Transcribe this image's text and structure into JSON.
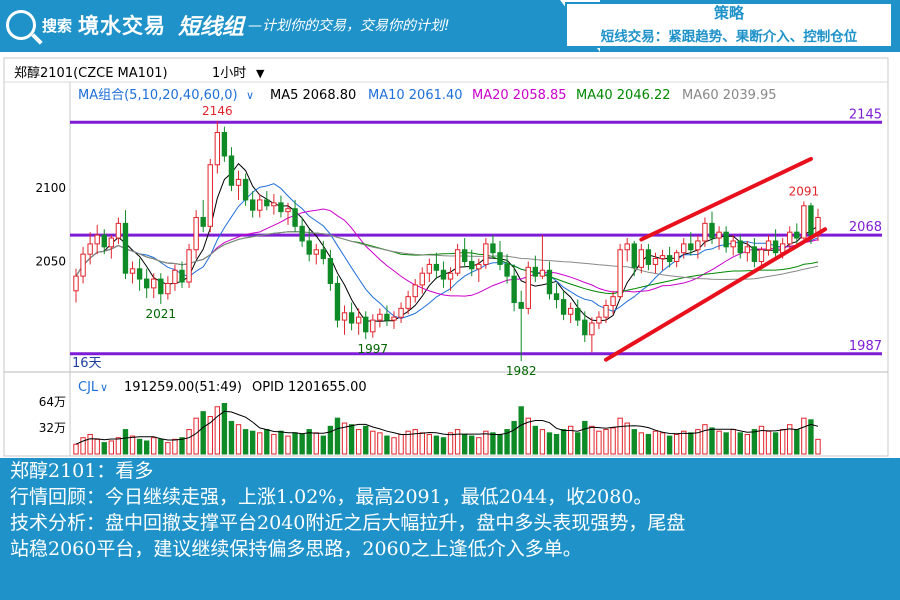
{
  "banner": {
    "logo_prefix": "搜索",
    "logo_name": "境水交易",
    "group": "短线组",
    "slogan": "—计划你的交易，交易你的计划!"
  },
  "strategy": {
    "title": "策略",
    "subtitle": "短线交易：紧跟趋势、果断介入、控制仓位"
  },
  "header": {
    "instrument": "郑醇2101(CZCE MA101)",
    "period": "1小时"
  },
  "ma_legend": {
    "group_label": "MA组合(5,10,20,40,60,0)",
    "items": [
      {
        "label": "MA5 2068.80",
        "color": "#000000"
      },
      {
        "label": "MA10 2061.40",
        "color": "#1e6fd9"
      },
      {
        "label": "MA20 2058.85",
        "color": "#cc00cc"
      },
      {
        "label": "MA40 2046.22",
        "color": "#008800"
      },
      {
        "label": "MA60 2039.95",
        "color": "#888888"
      }
    ]
  },
  "colors": {
    "up": "#e0242b",
    "down": "#0e8a26",
    "level": "#7f1dd6",
    "channel": "#e8101c"
  },
  "chart_data": [
    {
      "type": "candlestick",
      "title": "",
      "ylim": [
        1978,
        2152
      ],
      "y_ticks": [
        2050,
        2100
      ],
      "levels": [
        {
          "value": 2145,
          "label": "2145"
        },
        {
          "value": 2068,
          "label": "2068"
        },
        {
          "value": 1987,
          "label": "1987"
        }
      ],
      "annotations": [
        {
          "text": "2146",
          "value": 2146,
          "index": 20
        },
        {
          "text": "2021",
          "value": 2021,
          "index": 12
        },
        {
          "text": "1997",
          "value": 1997,
          "index": 42
        },
        {
          "text": "1982",
          "value": 1982,
          "index": 63
        },
        {
          "text": "2091",
          "value": 2091,
          "index": 103
        }
      ],
      "period_marker": "16天",
      "candles": [
        {
          "o": 2030,
          "h": 2045,
          "l": 2022,
          "c": 2040
        },
        {
          "o": 2040,
          "h": 2060,
          "l": 2035,
          "c": 2055
        },
        {
          "o": 2055,
          "h": 2070,
          "l": 2048,
          "c": 2062
        },
        {
          "o": 2062,
          "h": 2075,
          "l": 2055,
          "c": 2068
        },
        {
          "o": 2068,
          "h": 2072,
          "l": 2055,
          "c": 2060
        },
        {
          "o": 2060,
          "h": 2068,
          "l": 2052,
          "c": 2066
        },
        {
          "o": 2066,
          "h": 2080,
          "l": 2062,
          "c": 2076
        },
        {
          "o": 2076,
          "h": 2085,
          "l": 2038,
          "c": 2042
        },
        {
          "o": 2042,
          "h": 2050,
          "l": 2035,
          "c": 2045
        },
        {
          "o": 2045,
          "h": 2052,
          "l": 2030,
          "c": 2038
        },
        {
          "o": 2038,
          "h": 2045,
          "l": 2025,
          "c": 2032
        },
        {
          "o": 2032,
          "h": 2042,
          "l": 2025,
          "c": 2038
        },
        {
          "o": 2038,
          "h": 2042,
          "l": 2021,
          "c": 2028
        },
        {
          "o": 2028,
          "h": 2040,
          "l": 2024,
          "c": 2035
        },
        {
          "o": 2035,
          "h": 2048,
          "l": 2030,
          "c": 2044
        },
        {
          "o": 2044,
          "h": 2050,
          "l": 2032,
          "c": 2036
        },
        {
          "o": 2036,
          "h": 2062,
          "l": 2032,
          "c": 2058
        },
        {
          "o": 2058,
          "h": 2085,
          "l": 2052,
          "c": 2080
        },
        {
          "o": 2080,
          "h": 2092,
          "l": 2070,
          "c": 2074
        },
        {
          "o": 2074,
          "h": 2120,
          "l": 2070,
          "c": 2116
        },
        {
          "o": 2116,
          "h": 2146,
          "l": 2110,
          "c": 2138
        },
        {
          "o": 2138,
          "h": 2142,
          "l": 2118,
          "c": 2122
        },
        {
          "o": 2122,
          "h": 2128,
          "l": 2098,
          "c": 2102
        },
        {
          "o": 2102,
          "h": 2112,
          "l": 2092,
          "c": 2106
        },
        {
          "o": 2106,
          "h": 2110,
          "l": 2088,
          "c": 2092
        },
        {
          "o": 2092,
          "h": 2098,
          "l": 2080,
          "c": 2085
        },
        {
          "o": 2085,
          "h": 2096,
          "l": 2080,
          "c": 2092
        },
        {
          "o": 2092,
          "h": 2098,
          "l": 2085,
          "c": 2088
        },
        {
          "o": 2088,
          "h": 2096,
          "l": 2082,
          "c": 2090
        },
        {
          "o": 2090,
          "h": 2095,
          "l": 2080,
          "c": 2084
        },
        {
          "o": 2084,
          "h": 2090,
          "l": 2075,
          "c": 2086
        },
        {
          "o": 2086,
          "h": 2092,
          "l": 2070,
          "c": 2074
        },
        {
          "o": 2074,
          "h": 2080,
          "l": 2060,
          "c": 2064
        },
        {
          "o": 2064,
          "h": 2072,
          "l": 2050,
          "c": 2055
        },
        {
          "o": 2055,
          "h": 2062,
          "l": 2048,
          "c": 2058
        },
        {
          "o": 2058,
          "h": 2064,
          "l": 2048,
          "c": 2052
        },
        {
          "o": 2052,
          "h": 2058,
          "l": 2030,
          "c": 2035
        },
        {
          "o": 2035,
          "h": 2040,
          "l": 2005,
          "c": 2010
        },
        {
          "o": 2010,
          "h": 2020,
          "l": 2000,
          "c": 2015
        },
        {
          "o": 2015,
          "h": 2022,
          "l": 2003,
          "c": 2008
        },
        {
          "o": 2008,
          "h": 2018,
          "l": 2000,
          "c": 2012
        },
        {
          "o": 2012,
          "h": 2016,
          "l": 1997,
          "c": 2002
        },
        {
          "o": 2002,
          "h": 2014,
          "l": 1998,
          "c": 2010
        },
        {
          "o": 2010,
          "h": 2018,
          "l": 2005,
          "c": 2014
        },
        {
          "o": 2014,
          "h": 2020,
          "l": 2006,
          "c": 2010
        },
        {
          "o": 2010,
          "h": 2016,
          "l": 2004,
          "c": 2012
        },
        {
          "o": 2012,
          "h": 2022,
          "l": 2008,
          "c": 2018
        },
        {
          "o": 2018,
          "h": 2030,
          "l": 2014,
          "c": 2026
        },
        {
          "o": 2026,
          "h": 2038,
          "l": 2022,
          "c": 2034
        },
        {
          "o": 2034,
          "h": 2046,
          "l": 2028,
          "c": 2042
        },
        {
          "o": 2042,
          "h": 2052,
          "l": 2036,
          "c": 2048
        },
        {
          "o": 2048,
          "h": 2056,
          "l": 2038,
          "c": 2044
        },
        {
          "o": 2044,
          "h": 2050,
          "l": 2032,
          "c": 2038
        },
        {
          "o": 2038,
          "h": 2046,
          "l": 2030,
          "c": 2042
        },
        {
          "o": 2042,
          "h": 2062,
          "l": 2040,
          "c": 2058
        },
        {
          "o": 2058,
          "h": 2066,
          "l": 2046,
          "c": 2050
        },
        {
          "o": 2050,
          "h": 2058,
          "l": 2040,
          "c": 2045
        },
        {
          "o": 2045,
          "h": 2052,
          "l": 2036,
          "c": 2048
        },
        {
          "o": 2048,
          "h": 2066,
          "l": 2045,
          "c": 2062
        },
        {
          "o": 2062,
          "h": 2068,
          "l": 2052,
          "c": 2056
        },
        {
          "o": 2056,
          "h": 2064,
          "l": 2044,
          "c": 2048
        },
        {
          "o": 2048,
          "h": 2055,
          "l": 2035,
          "c": 2040
        },
        {
          "o": 2040,
          "h": 2048,
          "l": 2016,
          "c": 2022
        },
        {
          "o": 2022,
          "h": 2030,
          "l": 1982,
          "c": 2018
        },
        {
          "o": 2018,
          "h": 2050,
          "l": 2014,
          "c": 2046
        },
        {
          "o": 2046,
          "h": 2054,
          "l": 2036,
          "c": 2040
        },
        {
          "o": 2040,
          "h": 2068,
          "l": 2038,
          "c": 2044
        },
        {
          "o": 2044,
          "h": 2050,
          "l": 2024,
          "c": 2028
        },
        {
          "o": 2028,
          "h": 2035,
          "l": 2018,
          "c": 2024
        },
        {
          "o": 2024,
          "h": 2030,
          "l": 2010,
          "c": 2014
        },
        {
          "o": 2014,
          "h": 2022,
          "l": 2008,
          "c": 2018
        },
        {
          "o": 2018,
          "h": 2024,
          "l": 2006,
          "c": 2010
        },
        {
          "o": 2010,
          "h": 2016,
          "l": 1995,
          "c": 2000
        },
        {
          "o": 2000,
          "h": 2012,
          "l": 1988,
          "c": 2008
        },
        {
          "o": 2008,
          "h": 2016,
          "l": 2004,
          "c": 2012
        },
        {
          "o": 2012,
          "h": 2024,
          "l": 2008,
          "c": 2020
        },
        {
          "o": 2020,
          "h": 2030,
          "l": 2014,
          "c": 2026
        },
        {
          "o": 2026,
          "h": 2062,
          "l": 2024,
          "c": 2058
        },
        {
          "o": 2058,
          "h": 2066,
          "l": 2050,
          "c": 2062
        },
        {
          "o": 2062,
          "h": 2064,
          "l": 2040,
          "c": 2046
        },
        {
          "o": 2046,
          "h": 2062,
          "l": 2042,
          "c": 2058
        },
        {
          "o": 2058,
          "h": 2062,
          "l": 2044,
          "c": 2048
        },
        {
          "o": 2048,
          "h": 2056,
          "l": 2042,
          "c": 2052
        },
        {
          "o": 2052,
          "h": 2058,
          "l": 2044,
          "c": 2054
        },
        {
          "o": 2054,
          "h": 2060,
          "l": 2046,
          "c": 2050
        },
        {
          "o": 2050,
          "h": 2058,
          "l": 2046,
          "c": 2056
        },
        {
          "o": 2056,
          "h": 2066,
          "l": 2052,
          "c": 2062
        },
        {
          "o": 2062,
          "h": 2070,
          "l": 2054,
          "c": 2058
        },
        {
          "o": 2058,
          "h": 2068,
          "l": 2052,
          "c": 2064
        },
        {
          "o": 2064,
          "h": 2080,
          "l": 2060,
          "c": 2076
        },
        {
          "o": 2076,
          "h": 2084,
          "l": 2062,
          "c": 2066
        },
        {
          "o": 2066,
          "h": 2074,
          "l": 2058,
          "c": 2070
        },
        {
          "o": 2070,
          "h": 2074,
          "l": 2056,
          "c": 2060
        },
        {
          "o": 2060,
          "h": 2068,
          "l": 2054,
          "c": 2064
        },
        {
          "o": 2064,
          "h": 2068,
          "l": 2052,
          "c": 2056
        },
        {
          "o": 2056,
          "h": 2064,
          "l": 2050,
          "c": 2060
        },
        {
          "o": 2060,
          "h": 2066,
          "l": 2046,
          "c": 2050
        },
        {
          "o": 2050,
          "h": 2060,
          "l": 2046,
          "c": 2058
        },
        {
          "o": 2058,
          "h": 2068,
          "l": 2054,
          "c": 2064
        },
        {
          "o": 2064,
          "h": 2072,
          "l": 2052,
          "c": 2056
        },
        {
          "o": 2056,
          "h": 2066,
          "l": 2052,
          "c": 2062
        },
        {
          "o": 2062,
          "h": 2074,
          "l": 2058,
          "c": 2070
        },
        {
          "o": 2070,
          "h": 2076,
          "l": 2060,
          "c": 2066
        },
        {
          "o": 2066,
          "h": 2091,
          "l": 2062,
          "c": 2088
        },
        {
          "o": 2088,
          "h": 2090,
          "l": 2062,
          "c": 2068
        },
        {
          "o": 2068,
          "h": 2086,
          "l": 2064,
          "c": 2080
        }
      ],
      "channel": [
        {
          "from_index": 75,
          "from_value": 1983,
          "to_index": 106,
          "to_value": 2072
        },
        {
          "from_index": 80,
          "from_value": 2065,
          "to_index": 104,
          "to_value": 2120
        }
      ]
    },
    {
      "type": "bar",
      "title": "",
      "label": "CJL",
      "readout": "191259.00(51:49)",
      "opid": "OPID 1201655.00",
      "ylim": [
        0,
        70
      ],
      "y_ticks": [
        {
          "value": 32,
          "label": "32万"
        },
        {
          "value": 64,
          "label": "64万"
        }
      ],
      "volumes": [
        12,
        20,
        24,
        18,
        14,
        16,
        20,
        30,
        22,
        18,
        16,
        20,
        18,
        14,
        18,
        20,
        30,
        44,
        52,
        46,
        58,
        62,
        40,
        36,
        30,
        28,
        26,
        30,
        24,
        28,
        22,
        26,
        24,
        30,
        26,
        22,
        34,
        44,
        38,
        36,
        30,
        34,
        28,
        26,
        22,
        20,
        24,
        28,
        30,
        26,
        24,
        22,
        20,
        26,
        30,
        24,
        22,
        20,
        28,
        26,
        24,
        30,
        40,
        58,
        44,
        34,
        30,
        26,
        24,
        30,
        34,
        26,
        40,
        34,
        28,
        30,
        32,
        44,
        38,
        30,
        26,
        24,
        28,
        26,
        22,
        24,
        28,
        26,
        30,
        36,
        32,
        28,
        26,
        30,
        26,
        24,
        30,
        34,
        28,
        26,
        30,
        36,
        30,
        44,
        42,
        18
      ]
    }
  ],
  "analysis": {
    "line1": "郑醇2101：看多",
    "line2": "行情回顾：今日继续走强，上涨1.02%，最高2091，最低2044，收2080。",
    "line3": "技术分析：盘中回撤支撑平台2040附近之后大幅拉升，盘中多头表现强势，尾盘",
    "line4": "站稳2060平台，建议继续保持偏多思路，2060之上逢低介入多单。"
  }
}
